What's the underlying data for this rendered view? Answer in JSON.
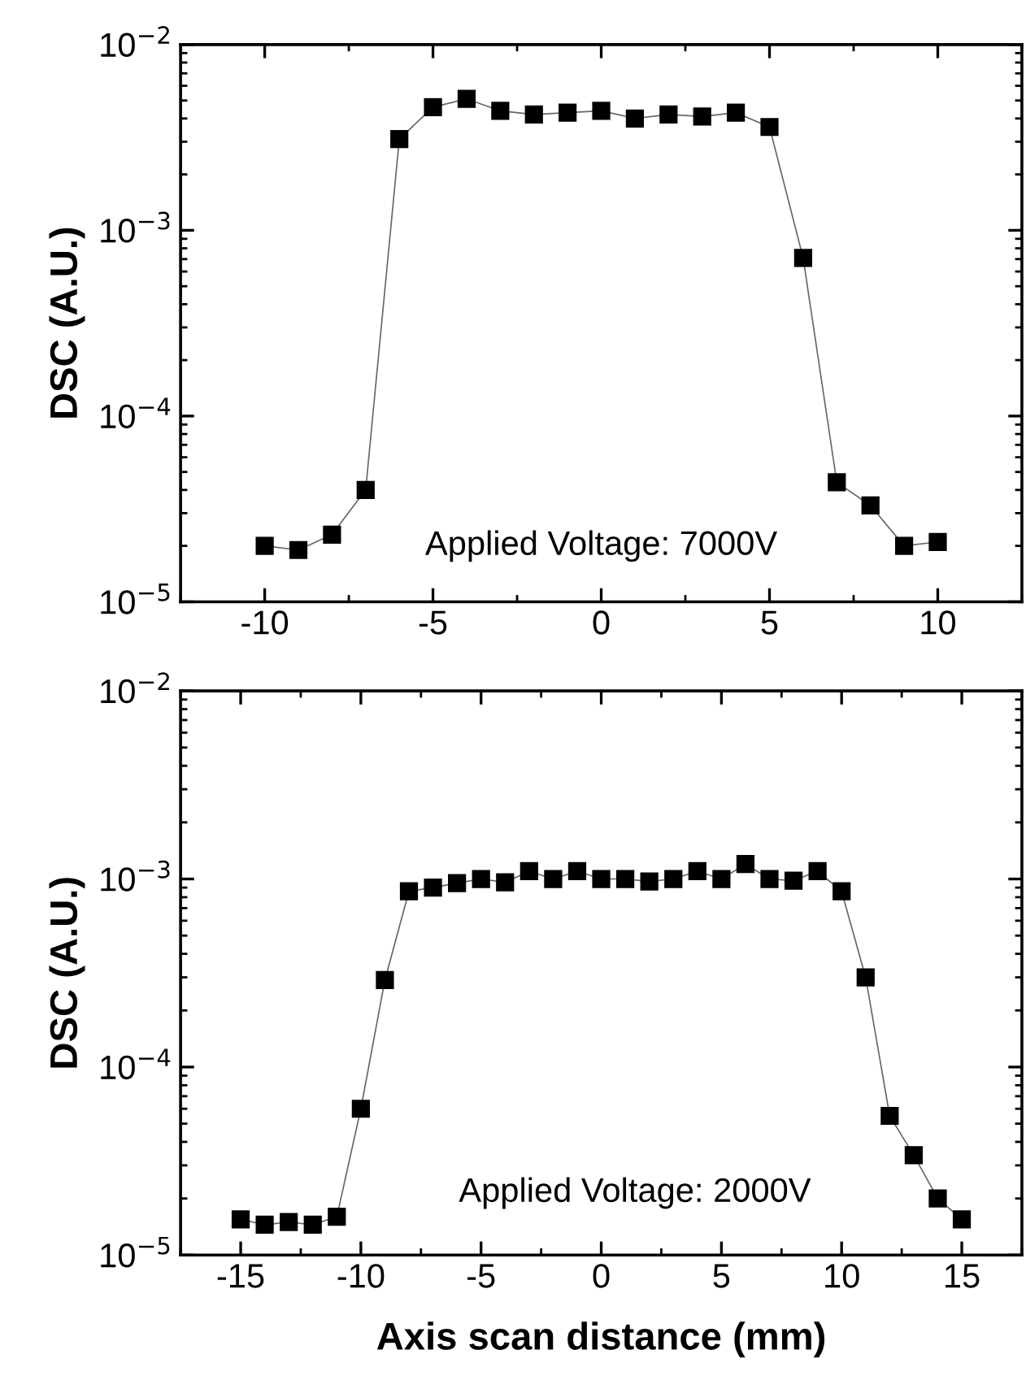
{
  "chart_data": [
    {
      "type": "line",
      "ylabel": "DSC (A.U.)",
      "annotations": [
        "Applied Voltage: 7000V"
      ],
      "marker": "square",
      "log": "y",
      "grid": false,
      "xlim": [
        -12.5,
        12.5
      ],
      "xticks": [
        -10,
        -5,
        0,
        5,
        10
      ],
      "ylim": [
        1e-05,
        0.01
      ],
      "yticks": [
        {
          "value": 1e-05,
          "label": "10$^{−5}$"
        },
        {
          "value": 0.0001,
          "label": "10$^{−4}$"
        },
        {
          "value": 0.001,
          "label": "10$^{−3}$"
        },
        {
          "value": 0.01,
          "label": "10$^{−2}$"
        }
      ],
      "x": [
        -10,
        -9,
        -8,
        -7,
        -6,
        -5,
        -4,
        -3,
        -2,
        -1,
        0,
        1,
        2,
        3,
        4,
        5,
        6,
        7,
        8,
        9,
        10
      ],
      "series": [
        {
          "color": "#000000",
          "values": [
            2e-05,
            1.9e-05,
            2.3e-05,
            4e-05,
            0.0031,
            0.0046,
            0.0051,
            0.0044,
            0.0042,
            0.0043,
            0.0044,
            0.004,
            0.0042,
            0.0041,
            0.0043,
            0.0036,
            0.00071,
            4.4e-05,
            3.3e-05,
            2e-05,
            2.1e-05
          ]
        }
      ]
    },
    {
      "type": "line",
      "ylabel": "DSC (A.U.)",
      "xlabel": "Axis scan distance (mm)",
      "annotations": [
        "Applied Voltage: 2000V"
      ],
      "marker": "square",
      "log": "y",
      "grid": false,
      "xlim": [
        -17.5,
        17.5
      ],
      "xticks": [
        -15,
        -10,
        -5,
        0,
        5,
        10,
        15
      ],
      "ylim": [
        1e-05,
        0.01
      ],
      "yticks": [
        {
          "value": 1e-05,
          "label": "10$^{−5}$"
        },
        {
          "value": 0.0001,
          "label": "10$^{−4}$"
        },
        {
          "value": 0.001,
          "label": "10$^{−3}$"
        },
        {
          "value": 0.01,
          "label": "10$^{−2}$"
        }
      ],
      "x": [
        -15,
        -14,
        -13,
        -12,
        -11,
        -10,
        -9,
        -8,
        -7,
        -6,
        -5,
        -4,
        -3,
        -2,
        -1,
        0,
        1,
        2,
        3,
        4,
        5,
        6,
        7,
        8,
        9,
        10,
        11,
        12,
        13,
        14,
        15
      ],
      "series": [
        {
          "color": "#000000",
          "values": [
            1.55e-05,
            1.45e-05,
            1.5e-05,
            1.45e-05,
            1.6e-05,
            6e-05,
            0.00029,
            0.00086,
            0.0009,
            0.00095,
            0.001,
            0.00096,
            0.0011,
            0.001,
            0.0011,
            0.001,
            0.001,
            0.00097,
            0.001,
            0.0011,
            0.001,
            0.0012,
            0.001,
            0.00098,
            0.0011,
            0.00086,
            0.0003,
            5.5e-05,
            3.4e-05,
            2e-05,
            1.55e-05
          ]
        }
      ]
    }
  ]
}
